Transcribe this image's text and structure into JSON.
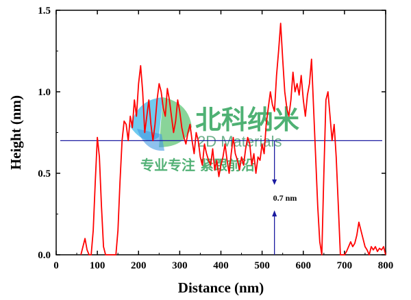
{
  "chart_data": {
    "type": "line",
    "title": "",
    "xlabel": "Distance (nm)",
    "ylabel": "Height (nm)",
    "xlim": [
      0,
      800
    ],
    "ylim": [
      0,
      1.5
    ],
    "xticks": [
      "0",
      "100",
      "200",
      "300",
      "400",
      "500",
      "600",
      "700",
      "800"
    ],
    "yticks": [
      "0.0",
      "0.5",
      "1.0",
      "1.5"
    ],
    "grid": false,
    "reference_line": {
      "y": 0.7,
      "color": "#1a1aa0"
    },
    "annotation": {
      "text": "0.7 nm",
      "x": 530
    },
    "series": [
      {
        "color": "#ff0000",
        "x": [
          60,
          65,
          70,
          75,
          80,
          85,
          90,
          95,
          100,
          105,
          110,
          115,
          120,
          125,
          130,
          135,
          140,
          145,
          150,
          155,
          160,
          165,
          170,
          175,
          180,
          185,
          190,
          195,
          200,
          205,
          210,
          215,
          220,
          225,
          230,
          235,
          240,
          245,
          250,
          255,
          260,
          265,
          270,
          275,
          280,
          285,
          290,
          295,
          300,
          305,
          310,
          315,
          320,
          325,
          330,
          335,
          340,
          345,
          350,
          355,
          360,
          365,
          370,
          375,
          380,
          385,
          390,
          395,
          400,
          405,
          410,
          415,
          420,
          425,
          430,
          435,
          440,
          445,
          450,
          455,
          460,
          465,
          470,
          475,
          480,
          485,
          490,
          495,
          500,
          505,
          510,
          515,
          520,
          525,
          530,
          535,
          540,
          545,
          550,
          555,
          560,
          565,
          570,
          575,
          580,
          585,
          590,
          595,
          600,
          605,
          610,
          615,
          620,
          625,
          630,
          635,
          640,
          645,
          650,
          655,
          660,
          665,
          670,
          675,
          680,
          685,
          690,
          695,
          700,
          705,
          710,
          715,
          720,
          725,
          730,
          735,
          740,
          745,
          750,
          755,
          760,
          765,
          770,
          775,
          780,
          785,
          790,
          795,
          800
        ],
        "values": [
          0.0,
          0.05,
          0.1,
          0.03,
          0.0,
          0.0,
          0.15,
          0.45,
          0.72,
          0.6,
          0.3,
          0.05,
          0.0,
          0.0,
          0.0,
          0.0,
          0.0,
          0.0,
          0.15,
          0.45,
          0.7,
          0.82,
          0.8,
          0.7,
          0.85,
          0.78,
          0.95,
          0.85,
          1.05,
          1.16,
          1.0,
          0.75,
          0.85,
          0.95,
          0.8,
          0.7,
          0.8,
          0.95,
          1.05,
          1.0,
          0.9,
          0.85,
          1.02,
          0.95,
          0.85,
          0.75,
          0.82,
          0.95,
          0.88,
          0.78,
          0.72,
          0.68,
          0.75,
          0.8,
          0.7,
          0.62,
          0.75,
          0.7,
          0.6,
          0.55,
          0.68,
          0.62,
          0.58,
          0.55,
          0.65,
          0.52,
          0.58,
          0.48,
          0.55,
          0.6,
          0.68,
          0.58,
          0.5,
          0.62,
          0.72,
          0.62,
          0.58,
          0.52,
          0.6,
          0.55,
          0.65,
          0.72,
          0.68,
          0.55,
          0.62,
          0.5,
          0.6,
          0.58,
          0.68,
          0.62,
          0.8,
          0.9,
          1.0,
          0.92,
          0.88,
          1.1,
          1.25,
          1.42,
          1.2,
          1.0,
          0.9,
          0.85,
          0.95,
          1.12,
          1.0,
          1.05,
          0.98,
          1.1,
          0.95,
          0.85,
          0.98,
          1.05,
          1.2,
          0.9,
          0.6,
          0.3,
          0.08,
          0.0,
          0.5,
          0.95,
          1.0,
          0.85,
          0.7,
          0.8,
          0.6,
          0.3,
          0.0,
          0.0,
          0.0,
          0.02,
          0.05,
          0.08,
          0.05,
          0.07,
          0.12,
          0.2,
          0.15,
          0.1,
          0.05,
          0.03,
          0.0,
          0.05,
          0.03,
          0.05,
          0.02,
          0.04,
          0.03,
          0.05,
          0.0
        ]
      }
    ]
  },
  "watermark": {
    "cn_title": "北科纳米",
    "en_title": "2D Materials",
    "slogan": "专业专注 紧跟前沿"
  }
}
